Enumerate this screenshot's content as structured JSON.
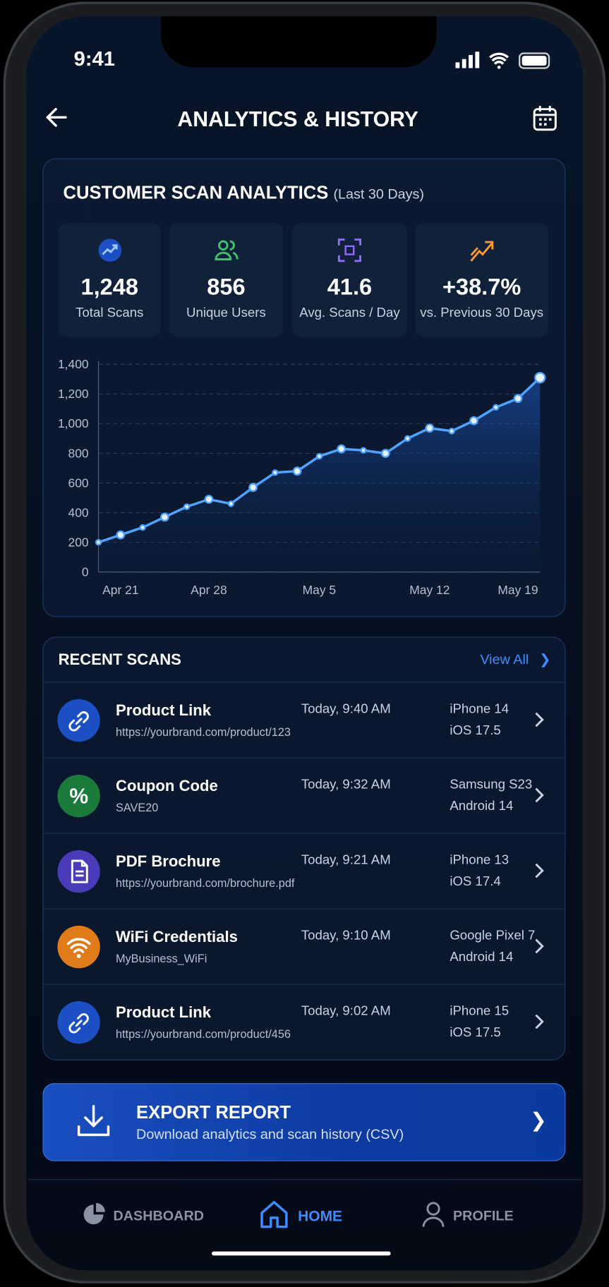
{
  "status_bar": {
    "time": "9:41"
  },
  "header": {
    "title": "ANALYTICS & HISTORY"
  },
  "analytics": {
    "title": "CUSTOMER SCAN ANALYTICS",
    "subtitle": "(Last 30 Days)",
    "stats": [
      {
        "value": "1,248",
        "label": "Total Scans"
      },
      {
        "value": "856",
        "label": "Unique Users"
      },
      {
        "value": "41.6",
        "label": "Avg. Scans / Day"
      },
      {
        "value": "+38.7%",
        "label": "vs. Previous 30 Days"
      }
    ]
  },
  "chart_data": {
    "type": "line",
    "categories": [
      null,
      "Apr 21",
      null,
      null,
      null,
      "Apr 28",
      null,
      null,
      null,
      null,
      "May 5",
      null,
      null,
      null,
      null,
      "May 12",
      null,
      null,
      null,
      "May 19",
      null
    ],
    "values": [
      200,
      250,
      300,
      370,
      440,
      490,
      460,
      570,
      670,
      680,
      780,
      830,
      820,
      800,
      900,
      970,
      950,
      1020,
      1110,
      1170,
      1310
    ],
    "color": "#4da3ff",
    "grid": true,
    "ylim": [
      0,
      1400
    ],
    "yticks": [
      0,
      200,
      400,
      600,
      800,
      {
        "value": 1000,
        "label": "1,000"
      },
      {
        "value": 1200,
        "label": "1,200"
      },
      {
        "value": 1400,
        "label": "1,400"
      }
    ]
  },
  "recent": {
    "title": "RECENT SCANS",
    "view_all": "View All",
    "items": [
      {
        "title": "Product Link",
        "subtitle": "https://yourbrand.com/product/123",
        "time": "Today, 9:40 AM",
        "device": "iPhone 14",
        "os": "iOS 17.5"
      },
      {
        "title": "Coupon Code",
        "subtitle": "SAVE20",
        "time": "Today, 9:32 AM",
        "device": "Samsung S23",
        "os": "Android 14"
      },
      {
        "title": "PDF Brochure",
        "subtitle": "https://yourbrand.com/brochure.pdf",
        "time": "Today, 9:21 AM",
        "device": "iPhone 13",
        "os": "iOS 17.4"
      },
      {
        "title": "WiFi Credentials",
        "subtitle": "MyBusiness_WiFi",
        "time": "Today, 9:10 AM",
        "device": "Google Pixel 7",
        "os": "Android 14"
      },
      {
        "title": "Product Link",
        "subtitle": "https://yourbrand.com/product/456",
        "time": "Today, 9:02 AM",
        "device": "iPhone 15",
        "os": "iOS 17.5"
      }
    ]
  },
  "export": {
    "title": "EXPORT REPORT",
    "subtitle": "Download analytics and scan history (CSV)"
  },
  "nav": [
    "DASHBOARD",
    "HOME",
    "PROFILE"
  ]
}
